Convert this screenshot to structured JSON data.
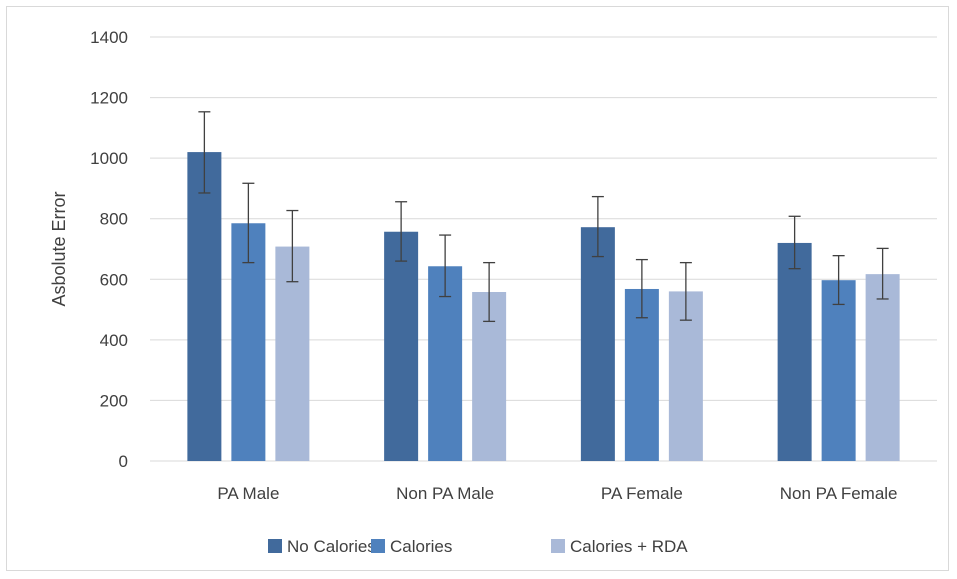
{
  "chart_data": {
    "type": "bar",
    "title": "",
    "xlabel": "",
    "ylabel": "Asbolute Error",
    "ylim": [
      0,
      1400
    ],
    "yticks": [
      0,
      200,
      400,
      600,
      800,
      1000,
      1200,
      1400
    ],
    "grid": true,
    "legend_position": "bottom",
    "categories": [
      "PA Male",
      "Non PA Male",
      "PA Female",
      "Non PA Female"
    ],
    "series": [
      {
        "name": "No Calories",
        "color": "#416a9c",
        "values": [
          1020,
          757,
          772,
          720
        ],
        "err_low": [
          885,
          660,
          675,
          635
        ],
        "err_high": [
          1153,
          856,
          873,
          808
        ]
      },
      {
        "name": "Calories",
        "color": "#4f81bd",
        "values": [
          785,
          643,
          568,
          597
        ],
        "err_low": [
          655,
          543,
          473,
          517
        ],
        "err_high": [
          917,
          746,
          665,
          678
        ]
      },
      {
        "name": "Calories + RDA",
        "color": "#a9b9d8",
        "values": [
          708,
          558,
          560,
          617
        ],
        "err_low": [
          592,
          461,
          465,
          535
        ],
        "err_high": [
          827,
          655,
          655,
          702
        ]
      }
    ]
  }
}
